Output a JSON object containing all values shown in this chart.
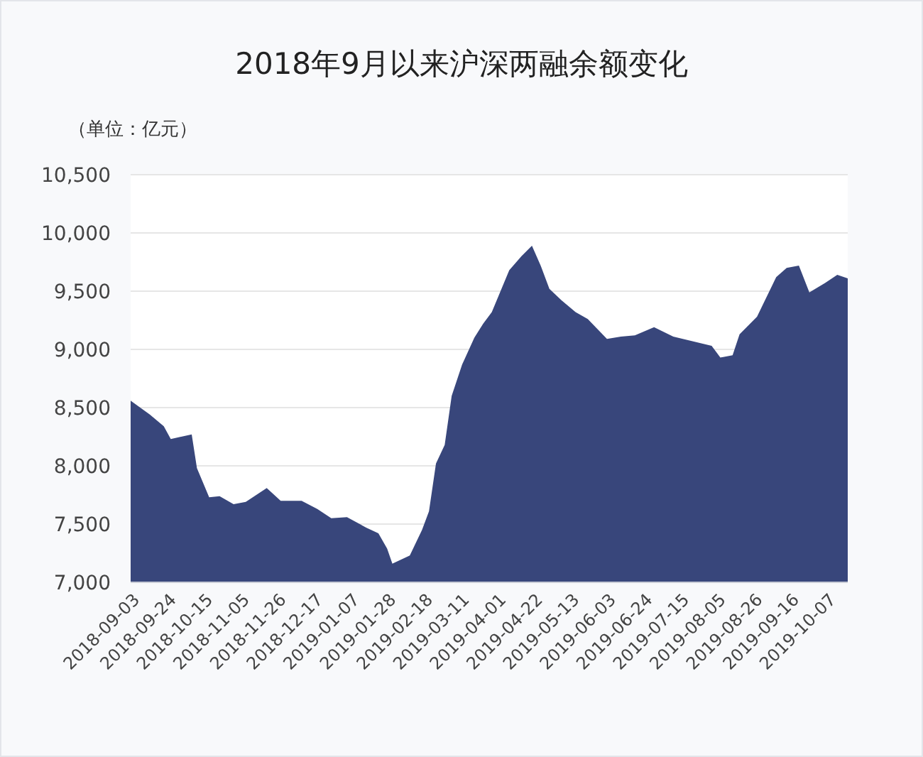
{
  "chart_data": {
    "type": "area",
    "title": "2018年9月以来沪深两融余额变化",
    "ylabel": "（单位：亿元）",
    "x": [
      "2018-09-03",
      "2018-09-14",
      "2018-09-22",
      "2018-09-26",
      "2018-10-08",
      "2018-10-11",
      "2018-10-18",
      "2018-10-24",
      "2018-11-01",
      "2018-11-08",
      "2018-11-20",
      "2018-11-28",
      "2018-12-10",
      "2018-12-19",
      "2018-12-27",
      "2019-01-05",
      "2019-01-16",
      "2019-01-23",
      "2019-01-28",
      "2019-01-31",
      "2019-02-10",
      "2019-02-17",
      "2019-02-21",
      "2019-02-25",
      "2019-03-02",
      "2019-03-06",
      "2019-03-12",
      "2019-03-19",
      "2019-03-24",
      "2019-03-29",
      "2019-04-08",
      "2019-04-15",
      "2019-04-21",
      "2019-04-26",
      "2019-05-01",
      "2019-05-08",
      "2019-05-16",
      "2019-05-23",
      "2019-06-03",
      "2019-06-11",
      "2019-06-19",
      "2019-06-30",
      "2019-07-11",
      "2019-07-22",
      "2019-08-02",
      "2019-08-07",
      "2019-08-14",
      "2019-08-18",
      "2019-08-28",
      "2019-09-08",
      "2019-09-14",
      "2019-09-21",
      "2019-09-27",
      "2019-10-06",
      "2019-10-13",
      "2019-10-19"
    ],
    "series": [
      {
        "color": "#38467b",
        "values": [
          8560,
          8440,
          8340,
          8230,
          8270,
          7980,
          7730,
          7740,
          7670,
          7690,
          7810,
          7700,
          7700,
          7630,
          7550,
          7560,
          7470,
          7420,
          7290,
          7160,
          7230,
          7450,
          7610,
          8020,
          8180,
          8600,
          8870,
          9100,
          9220,
          9320,
          9680,
          9800,
          9890,
          9720,
          9520,
          9420,
          9320,
          9260,
          9090,
          9110,
          9120,
          9190,
          9110,
          9070,
          9030,
          8930,
          8950,
          9130,
          9280,
          9620,
          9700,
          9720,
          9490,
          9570,
          9640,
          9610
        ]
      }
    ],
    "xlim": [
      "2018-09-03",
      "2019-10-19"
    ],
    "xticks": [
      "2018-09-03",
      "2018-09-24",
      "2018-10-15",
      "2018-11-05",
      "2018-11-26",
      "2018-12-17",
      "2019-01-07",
      "2019-01-28",
      "2019-02-18",
      "2019-03-11",
      "2019-04-01",
      "2019-04-22",
      "2019-05-13",
      "2019-06-03",
      "2019-06-24",
      "2019-07-15",
      "2019-08-05",
      "2019-08-26",
      "2019-09-16",
      "2019-10-07"
    ],
    "ylim": [
      7000,
      10500
    ],
    "yticks": [
      {
        "value": 7000,
        "label": "7,000"
      },
      {
        "value": 7500,
        "label": "7,500"
      },
      {
        "value": 8000,
        "label": "8,000"
      },
      {
        "value": 8500,
        "label": "8,500"
      },
      {
        "value": 9000,
        "label": "9,000"
      },
      {
        "value": 9500,
        "label": "9,500"
      },
      {
        "value": 10000,
        "label": "10,000"
      },
      {
        "value": 10500,
        "label": "10,500"
      }
    ],
    "grid": "y"
  }
}
